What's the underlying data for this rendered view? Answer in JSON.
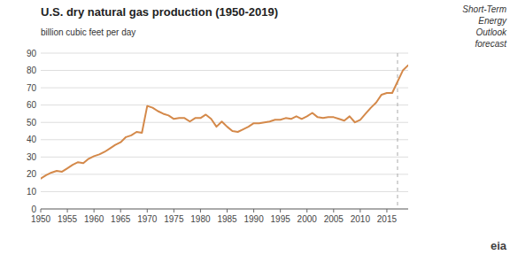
{
  "chart_data": {
    "type": "line",
    "title": "U.S. dry natural gas production (1950-2019)",
    "ylabel": "billion cubic feet per day",
    "annotations": [
      "Short-Term\nEnergy\nOutlook\nforecast",
      "eia"
    ],
    "color": "#D4894A",
    "grid": true,
    "dashed_line_x": 2017,
    "xlim": [
      1950,
      2019
    ],
    "ylim": [
      0,
      90
    ],
    "xticks": [
      1950,
      1955,
      1960,
      1965,
      1970,
      1975,
      1980,
      1985,
      1990,
      1995,
      2000,
      2005,
      2010,
      2015
    ],
    "yticks": [
      0,
      10,
      20,
      30,
      40,
      50,
      60,
      70,
      80,
      90
    ],
    "x": [
      1950,
      1951,
      1952,
      1953,
      1954,
      1955,
      1956,
      1957,
      1958,
      1959,
      1960,
      1961,
      1962,
      1963,
      1964,
      1965,
      1966,
      1967,
      1968,
      1969,
      1970,
      1971,
      1972,
      1973,
      1974,
      1975,
      1976,
      1977,
      1978,
      1979,
      1980,
      1981,
      1982,
      1983,
      1984,
      1985,
      1986,
      1987,
      1988,
      1989,
      1990,
      1991,
      1992,
      1993,
      1994,
      1995,
      1996,
      1997,
      1998,
      1999,
      2000,
      2001,
      2002,
      2003,
      2004,
      2005,
      2006,
      2007,
      2008,
      2009,
      2010,
      2011,
      2012,
      2013,
      2014,
      2015,
      2016,
      2017,
      2018,
      2019
    ],
    "values": [
      17.5,
      19.5,
      21.0,
      22.0,
      21.5,
      23.5,
      25.5,
      27.0,
      26.5,
      29.0,
      30.5,
      31.5,
      33.0,
      35.0,
      37.0,
      38.5,
      41.5,
      42.5,
      44.5,
      44.0,
      59.5,
      58.5,
      56.5,
      55.0,
      54.0,
      52.0,
      52.5,
      52.5,
      50.5,
      52.5,
      52.5,
      54.5,
      52.0,
      47.5,
      50.5,
      47.5,
      45.0,
      44.5,
      46.0,
      47.5,
      49.5,
      49.5,
      50.0,
      50.5,
      51.5,
      51.5,
      52.5,
      52.0,
      53.5,
      52.0,
      53.5,
      55.5,
      53.0,
      52.5,
      53.0,
      53.0,
      52.0,
      51.0,
      53.5,
      50.0,
      51.5,
      55.0,
      58.5,
      61.5,
      66.0,
      67.0,
      67.0,
      73.5,
      80.0,
      83.0
    ]
  }
}
